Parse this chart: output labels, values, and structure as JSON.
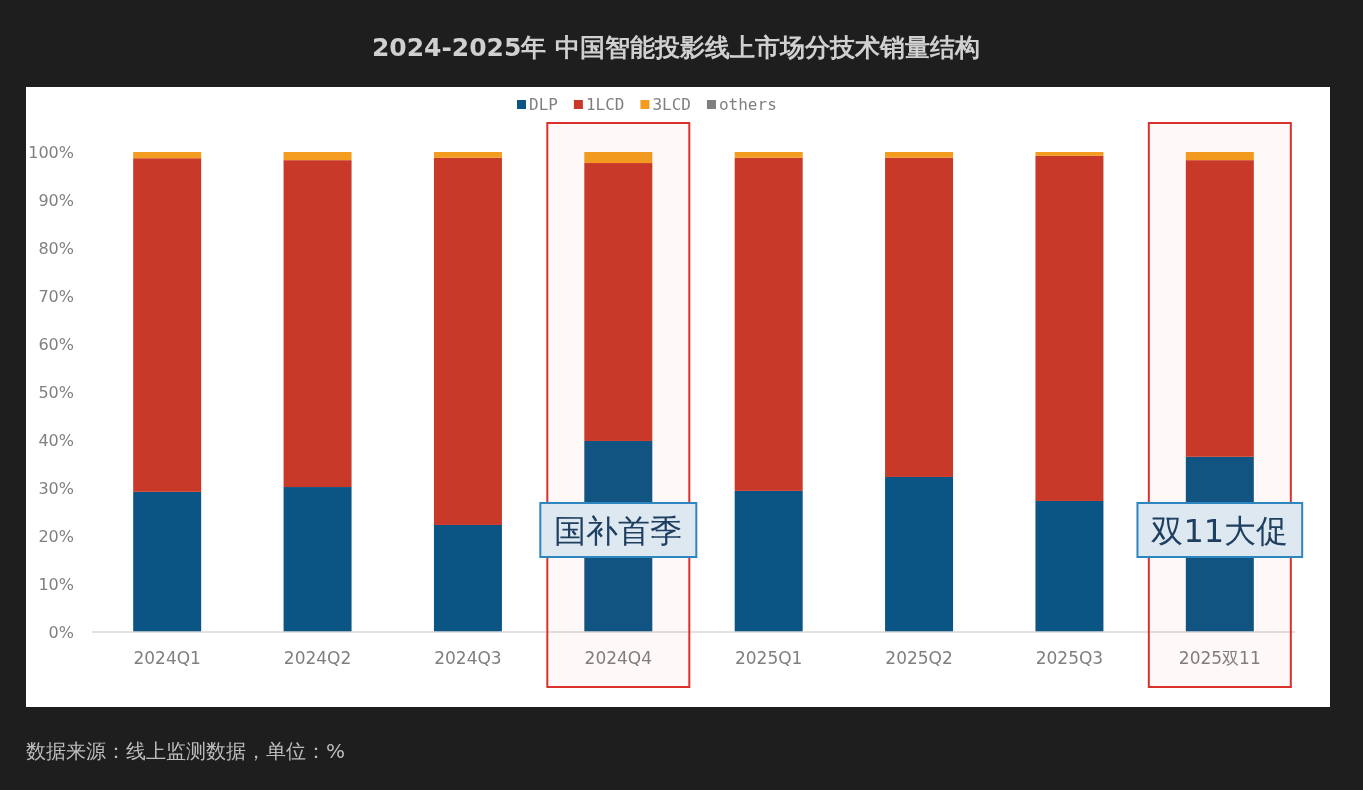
{
  "chart_data": {
    "type": "bar",
    "stacked": true,
    "title": "2024-2025年 中国智能投影线上市场分技术销量结构",
    "categories": [
      "2024Q1",
      "2024Q2",
      "2024Q3",
      "2024Q4",
      "2025Q1",
      "2025Q2",
      "2025Q3",
      "2025双11"
    ],
    "series": [
      {
        "name": "DLP",
        "color": "#0b5585",
        "values": [
          29.2,
          30.2,
          22.3,
          39.8,
          29.4,
          32.3,
          27.3,
          36.5
        ]
      },
      {
        "name": "1LCD",
        "color": "#c9392a",
        "values": [
          69.5,
          68.1,
          76.5,
          57.9,
          69.4,
          66.5,
          71.9,
          61.8
        ]
      },
      {
        "name": "3LCD",
        "color": "#f39c1f",
        "values": [
          1.3,
          1.7,
          1.2,
          2.3,
          1.2,
          1.2,
          0.8,
          1.7
        ]
      },
      {
        "name": "others",
        "color": "#7f7f7f",
        "values": [
          0,
          0,
          0,
          0,
          0,
          0,
          0,
          0
        ]
      }
    ],
    "ylim": [
      0,
      100
    ],
    "yticks": [
      {
        "value": 0,
        "label": "0%"
      },
      {
        "value": 10,
        "label": "10%"
      },
      {
        "value": 20,
        "label": "20%"
      },
      {
        "value": 30,
        "label": "30%"
      },
      {
        "value": 40,
        "label": "40%"
      },
      {
        "value": 50,
        "label": "50%"
      },
      {
        "value": 60,
        "label": "60%"
      },
      {
        "value": 70,
        "label": "70%"
      },
      {
        "value": 80,
        "label": "80%"
      },
      {
        "value": 90,
        "label": "90%"
      },
      {
        "value": 100,
        "label": "100%"
      }
    ],
    "grid": false,
    "legend": "top",
    "bands": [
      {
        "axis": "x",
        "from": "2024Q4",
        "to": "2024Q4",
        "color": "#d9312c"
      },
      {
        "axis": "x",
        "from": "2025双11",
        "to": "2025双11",
        "color": "#d9312c"
      }
    ],
    "annotations": [
      "国补首季",
      "双11大促",
      "数据来源：线上监测数据，单位：%"
    ]
  }
}
